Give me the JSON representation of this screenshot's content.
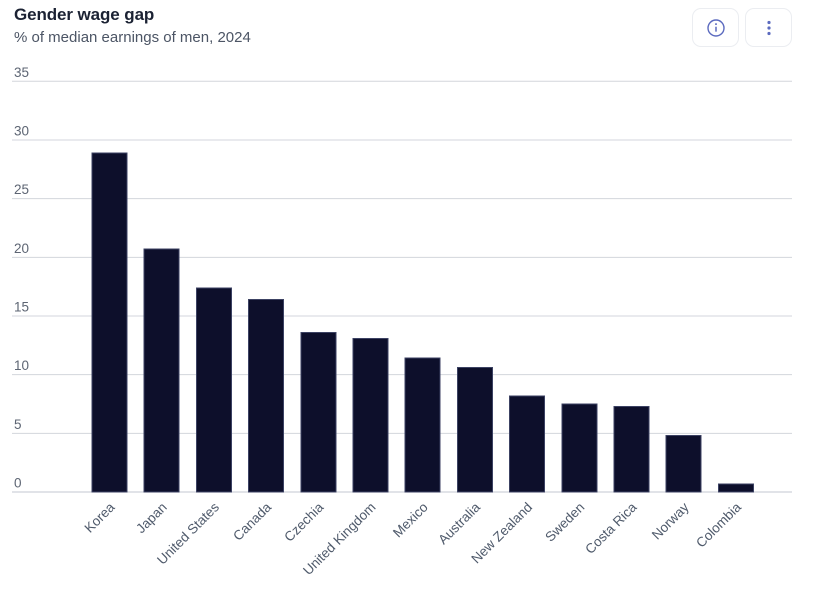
{
  "header": {
    "title": "Gender wage gap",
    "subtitle": "% of median earnings of men, 2024",
    "buttons": [
      {
        "name": "info-button",
        "icon": "info-circle-icon"
      },
      {
        "name": "more-options-button",
        "icon": "kebab-menu-icon"
      }
    ]
  },
  "colors": {
    "bar_fill": "#0d0f2b",
    "bar_stroke": "#3c4263",
    "grid_line": "#d3d6dc",
    "axis_line": "#c3c7d0",
    "title_text": "#1b2233",
    "subtitle_text": "#4c5565",
    "ytick_text": "#5d6573",
    "xlabel_text": "#4f5a6b",
    "icon_accent": "#5b6abf",
    "button_border": "#ebedf1",
    "background": "#ffffff"
  },
  "chart_data": {
    "type": "bar",
    "title": "Gender wage gap",
    "subtitle": "% of median earnings of men, 2024",
    "categories": [
      "Korea",
      "Japan",
      "United States",
      "Canada",
      "Czechia",
      "United Kingdom",
      "Mexico",
      "Australia",
      "New Zealand",
      "Sweden",
      "Costa Rica",
      "Norway",
      "Colombia"
    ],
    "values": [
      28.9,
      20.7,
      17.4,
      16.4,
      13.6,
      13.1,
      11.4,
      10.6,
      8.2,
      7.5,
      7.3,
      4.8,
      0.7
    ],
    "xlabel": "",
    "ylabel": "",
    "ylim": [
      0,
      35
    ],
    "yticks": [
      0,
      5,
      10,
      15,
      20,
      25,
      30,
      35
    ],
    "grid": true,
    "legend": false,
    "x_label_rotation_deg": -45,
    "bar_orientation": "vertical"
  }
}
